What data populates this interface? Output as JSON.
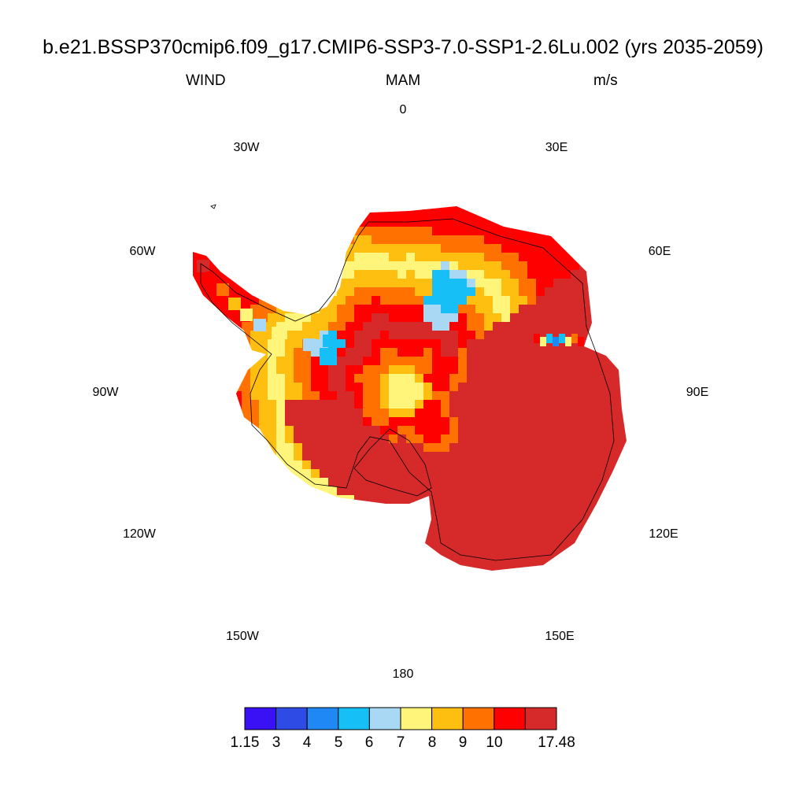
{
  "title": "b.e21.BSSP370cmip6.f09_g17.CMIP6-SSP3-7.0-SSP1-2.6Lu.002 (yrs 2035-2059)",
  "subtitle": {
    "left": "WIND",
    "center": "MAM",
    "right": "m/s"
  },
  "longitude_labels": [
    "0",
    "30E",
    "60E",
    "90E",
    "120E",
    "150E",
    "180",
    "150W",
    "120W",
    "90W",
    "60W",
    "30W"
  ],
  "projection": "south-polar-stereographic",
  "colorbar": {
    "colors": [
      "#3a10f5",
      "#2f4be6",
      "#2088f5",
      "#16bff5",
      "#a8d8f3",
      "#fff57a",
      "#ffbf10",
      "#ff7100",
      "#ff0000",
      "#d62a2a"
    ],
    "labels": [
      "1.15",
      "3",
      "4",
      "5",
      "6",
      "7",
      "8",
      "9",
      "10",
      "17.48"
    ]
  }
}
